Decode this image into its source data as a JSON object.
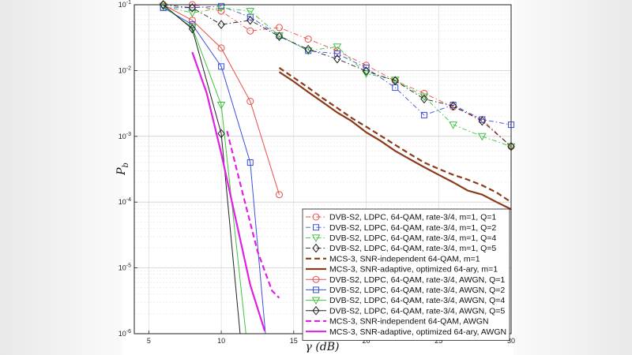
{
  "chart_data": {
    "type": "line",
    "title": "",
    "xlabel": "γ (dB)",
    "ylabel": "P_b",
    "xlim": [
      4,
      30
    ],
    "ylim_log10": [
      -6,
      -1
    ],
    "x_ticks": [
      5,
      10,
      15,
      20,
      25,
      30
    ],
    "x_tick_labels": [
      "5",
      "10",
      "15",
      "20",
      "25",
      "30"
    ],
    "y_ticks_log10": [
      -6,
      -5,
      -4,
      -3,
      -2,
      -1
    ],
    "y_tick_labels": [
      "10-6",
      "10-5",
      "10-4",
      "10-3",
      "10-2",
      "10-1"
    ],
    "grid": true,
    "legend_position": "bottom-right",
    "series": [
      {
        "name": "DVB-S2, LDPC, 64-QAM, rate-3/4, m=1, Q=1",
        "color": "#e8504a",
        "style": "dash-dot",
        "width": 0.9,
        "marker": "circle",
        "x": [
          6,
          8,
          10,
          12,
          14,
          16,
          18,
          20,
          22,
          24,
          26,
          28,
          30
        ],
        "y": [
          0.1,
          0.1,
          0.08,
          0.04,
          0.045,
          0.03,
          0.02,
          0.012,
          0.007,
          0.0045,
          0.0028,
          0.0018,
          0.0007
        ]
      },
      {
        "name": "DVB-S2, LDPC, 64-QAM, rate-3/4, m=1, Q=2",
        "color": "#3a50e0",
        "style": "dash-dot",
        "width": 0.9,
        "marker": "square",
        "x": [
          6,
          8,
          10,
          12,
          14,
          16,
          18,
          20,
          22,
          24,
          26,
          28,
          30
        ],
        "y": [
          0.09,
          0.09,
          0.095,
          0.065,
          0.034,
          0.02,
          0.018,
          0.011,
          0.0055,
          0.0021,
          0.003,
          0.0018,
          0.0015
        ]
      },
      {
        "name": "DVB-S2, LDPC, 64-QAM, rate-3/4, m=1, Q=4",
        "color": "#3ec43e",
        "style": "dash-dot",
        "width": 0.9,
        "marker": "triangle-down",
        "x": [
          6,
          8,
          10,
          12,
          14,
          16,
          18,
          20,
          22,
          24,
          26,
          28,
          30
        ],
        "y": [
          0.095,
          0.075,
          0.09,
          0.08,
          0.034,
          0.02,
          0.023,
          0.009,
          0.0072,
          0.004,
          0.0015,
          0.001,
          0.0007
        ]
      },
      {
        "name": "DVB-S2, LDPC, 64-QAM, rate-3/4, m=1, Q=5",
        "color": "#222222",
        "style": "dash-dot",
        "width": 0.9,
        "marker": "diamond",
        "x": [
          6,
          8,
          10,
          12,
          14,
          16,
          18,
          20,
          22,
          24,
          26,
          28,
          30
        ],
        "y": [
          0.1,
          0.09,
          0.05,
          0.058,
          0.033,
          0.021,
          0.015,
          0.0098,
          0.007,
          0.0037,
          0.0029,
          0.0017,
          0.0007
        ]
      },
      {
        "name": "MCS-3, SNR-independent 64-QAM, m=1",
        "color": "#8b3a1a",
        "style": "dash",
        "width": 2.2,
        "marker": "none",
        "x": [
          14,
          15,
          16,
          17,
          18,
          19,
          20,
          21,
          22,
          23,
          24,
          25,
          26,
          27,
          28,
          29,
          30
        ],
        "y": [
          0.011,
          0.0078,
          0.0055,
          0.0038,
          0.0027,
          0.0019,
          0.0014,
          0.00102,
          0.00074,
          0.00054,
          0.0004,
          0.00032,
          0.00026,
          0.00022,
          0.00018,
          0.00014,
          0.0001
        ]
      },
      {
        "name": "MCS-3, SNR-adaptive, optimized 64-ary, m=1",
        "color": "#8b3a1a",
        "style": "solid",
        "width": 2.2,
        "marker": "none",
        "x": [
          14,
          15,
          16,
          17,
          18,
          19,
          20,
          21,
          22,
          23,
          24,
          25,
          26,
          27,
          28,
          29,
          30
        ],
        "y": [
          0.0095,
          0.0068,
          0.0047,
          0.0033,
          0.0023,
          0.0017,
          0.00115,
          0.00085,
          0.0006,
          0.00045,
          0.00034,
          0.00026,
          0.0002,
          0.00015,
          0.00013,
          0.0001,
          7.8e-05
        ]
      },
      {
        "name": "DVB-S2, LDPC, 64-QAM, rate-3/4, AWGN, Q=1",
        "color": "#e8504a",
        "style": "solid",
        "width": 1,
        "marker": "circle",
        "x": [
          6,
          8,
          10,
          12,
          14
        ],
        "y": [
          0.1,
          0.058,
          0.022,
          0.0034,
          0.00013
        ]
      },
      {
        "name": "DVB-S2, LDPC, 64-QAM, rate-3/4, AWGN, Q=2",
        "color": "#3a50e0",
        "style": "solid",
        "width": 1,
        "marker": "square",
        "x": [
          6,
          8,
          10,
          12,
          13.05
        ],
        "y": [
          0.09,
          0.05,
          0.0115,
          0.0004,
          1e-06
        ]
      },
      {
        "name": "DVB-S2, LDPC, 64-QAM, rate-3/4, AWGN, Q=4",
        "color": "#3ec43e",
        "style": "solid",
        "width": 1,
        "marker": "triangle-down",
        "x": [
          6,
          8,
          10,
          11.7
        ],
        "y": [
          0.095,
          0.045,
          0.003,
          1e-06
        ]
      },
      {
        "name": "DVB-S2, LDPC, 64-QAM, rate-3/4, AWGN, Q=5",
        "color": "#222222",
        "style": "solid",
        "width": 1,
        "marker": "diamond",
        "x": [
          6,
          8,
          10,
          11.3
        ],
        "y": [
          0.1,
          0.043,
          0.0011,
          1e-06
        ]
      },
      {
        "name": "MCS-3, SNR-independent 64-QAM, AWGN",
        "color": "#e020e0",
        "style": "dash",
        "width": 2.2,
        "marker": "none",
        "x": [
          10.4,
          11.5,
          12.5,
          13.5,
          14
        ],
        "y": [
          0.0012,
          0.00013,
          1.8e-05,
          4.5e-06,
          3.5e-06
        ]
      },
      {
        "name": "MCS-3, SNR-adaptive, optimized 64-ary, AWGN",
        "color": "#e020e0",
        "style": "solid",
        "width": 2.2,
        "marker": "none",
        "x": [
          8,
          9,
          10,
          11,
          12,
          13
        ],
        "y": [
          0.019,
          0.0045,
          0.00055,
          5.5e-05,
          5.5e-06,
          1.1e-06
        ]
      }
    ]
  }
}
